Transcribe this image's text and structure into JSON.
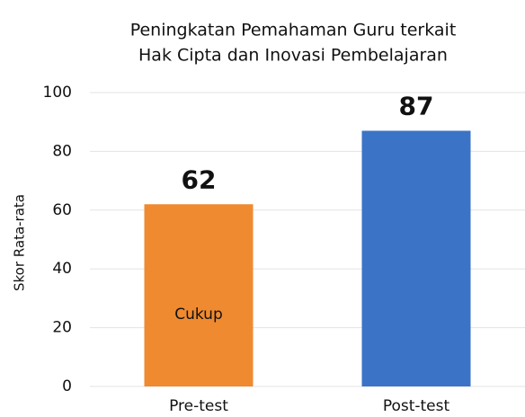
{
  "chart_data": {
    "type": "bar",
    "title": [
      "Peningkatan Pemahaman Guru terkait",
      "Hak Cipta dan Inovasi Pembelajaran"
    ],
    "y_label": "Skor Rata-rata",
    "categories": [
      "Pre-test",
      "Post-test"
    ],
    "values": [
      62,
      87
    ],
    "colors": [
      "#ef8a30",
      "#3b74c6"
    ],
    "annotation": {
      "text": "Cukup",
      "category": 0
    },
    "ylim": [
      0,
      100
    ],
    "yticks": [
      0,
      20,
      40,
      60,
      80,
      100
    ],
    "grid": true
  }
}
